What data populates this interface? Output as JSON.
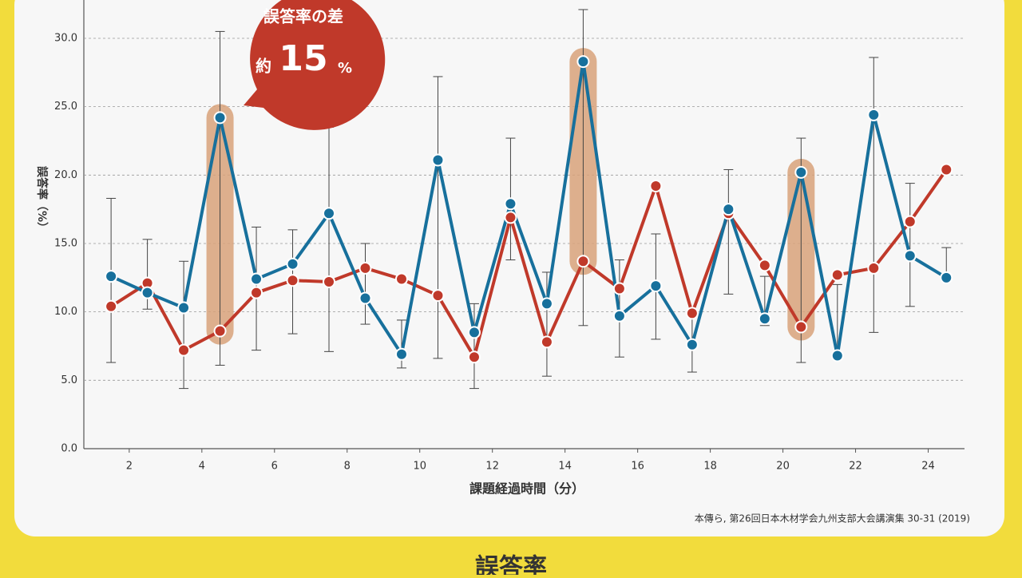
{
  "chart_data": {
    "type": "line",
    "x": [
      1.5,
      2.5,
      3.5,
      4.5,
      5.5,
      6.5,
      7.5,
      8.5,
      9.5,
      10.5,
      11.5,
      12.5,
      13.5,
      14.5,
      15.5,
      16.5,
      17.5,
      18.5,
      19.5,
      20.5,
      21.5,
      22.5,
      23.5,
      24.5
    ],
    "series": [
      {
        "color": "#17709c",
        "values": [
          12.6,
          11.4,
          10.3,
          24.2,
          12.4,
          13.5,
          17.2,
          11.0,
          6.9,
          21.1,
          8.5,
          17.9,
          10.6,
          28.3,
          9.7,
          11.9,
          7.6,
          17.5,
          9.5,
          20.2,
          6.8,
          24.4,
          14.1,
          12.5
        ]
      },
      {
        "color": "#c0392a",
        "values": [
          10.4,
          12.1,
          7.2,
          8.6,
          11.4,
          12.3,
          12.2,
          13.2,
          12.4,
          11.2,
          6.7,
          16.9,
          7.8,
          13.7,
          11.7,
          19.2,
          9.9,
          17.2,
          13.4,
          8.9,
          12.7,
          13.2,
          16.6,
          20.4
        ]
      }
    ],
    "error_high": [
      18.3,
      15.3,
      13.7,
      30.5,
      16.2,
      16.0,
      23.5,
      15.0,
      9.4,
      27.2,
      10.6,
      22.7,
      12.9,
      32.1,
      13.8,
      15.7,
      9.8,
      20.4,
      12.6,
      22.7,
      12.0,
      28.6,
      19.4,
      14.7
    ],
    "error_low": [
      6.3,
      10.2,
      4.4,
      6.1,
      7.2,
      8.4,
      7.1,
      9.1,
      5.9,
      6.6,
      4.4,
      13.8,
      5.3,
      9.0,
      6.7,
      8.0,
      5.6,
      11.3,
      9.0,
      6.3,
      6.8,
      8.5,
      10.4,
      12.4
    ],
    "highlight_x": [
      4.5,
      14.5,
      20.5
    ],
    "xlabel": "課題経過時間（分）",
    "ylabel": "誤答率（%）",
    "xlim": [
      0.75,
      25
    ],
    "xticks": [
      2,
      4,
      6,
      8,
      10,
      12,
      14,
      16,
      18,
      20,
      22,
      24
    ],
    "ylim": [
      0,
      32.8
    ],
    "yticks": [
      {
        "value": 0,
        "label": "0.0"
      },
      {
        "value": 5,
        "label": "5.0"
      },
      {
        "value": 10,
        "label": "10.0"
      },
      {
        "value": 15,
        "label": "15.0"
      },
      {
        "value": 20,
        "label": "20.0"
      },
      {
        "value": 25,
        "label": "25.0"
      },
      {
        "value": 30,
        "label": "30.0"
      }
    ],
    "grid": true,
    "annotation": {
      "title": "誤答率の差",
      "prefix": "約",
      "value": "15",
      "unit": "%"
    },
    "source": "本傳ら, 第26回日本木材学会九州支部大会講演集 30-31 (2019)",
    "footer_title": "誤答率"
  }
}
